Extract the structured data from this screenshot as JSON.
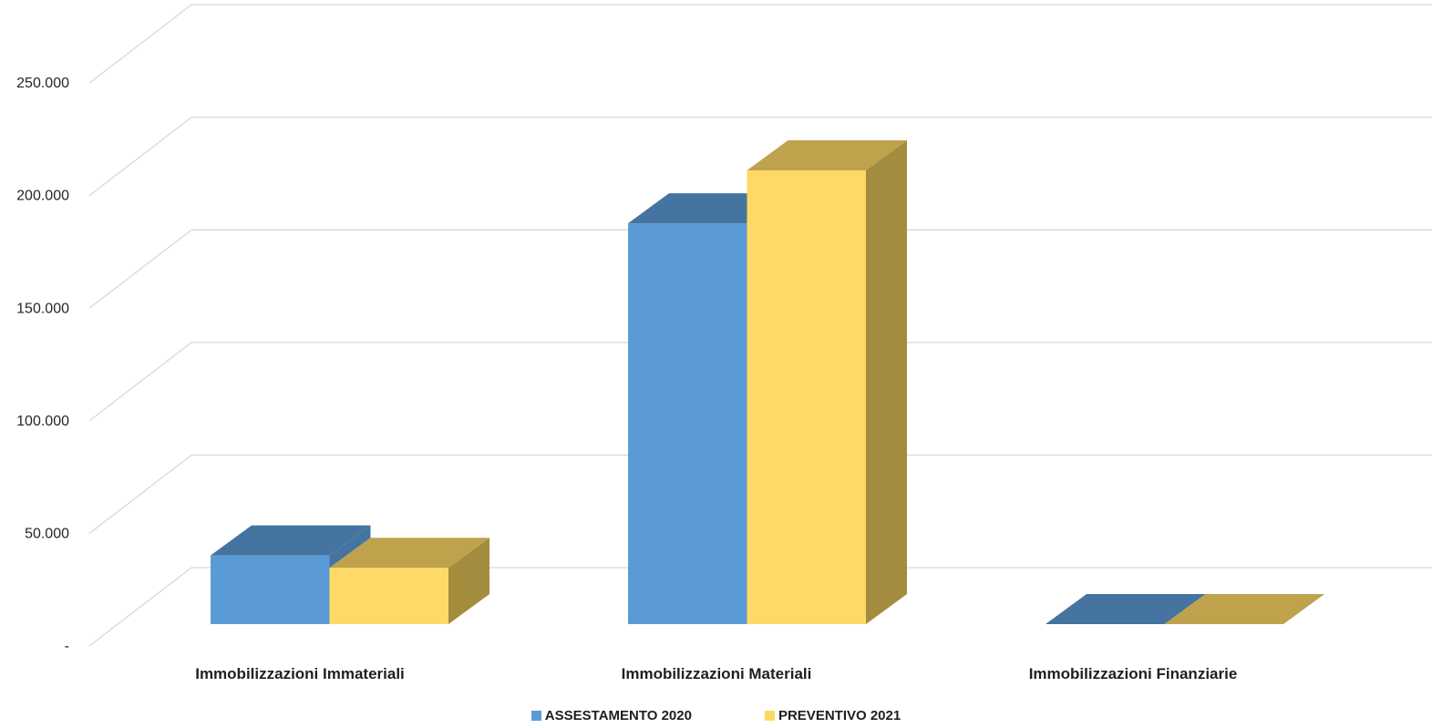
{
  "chart_data": {
    "type": "bar",
    "style": "3d-clustered-column",
    "categories": [
      "Immobilizzazioni Immateriali",
      "Immobilizzazioni Materiali",
      "Immobilizzazioni Finanziarie"
    ],
    "series": [
      {
        "name": "ASSESTAMENTO  2020",
        "values": [
          30500,
          178000,
          0
        ],
        "color": "#5b9bd5",
        "top_color": "#44749f"
      },
      {
        "name": "PREVENTIVO 2021",
        "values": [
          25000,
          201500,
          0
        ],
        "color": "#ffd966",
        "top_color": "#bfa24c",
        "side_color": "#a38c3e"
      }
    ],
    "ylim": [
      0,
      250000
    ],
    "yticks": [
      0,
      50000,
      100000,
      150000,
      200000,
      250000
    ],
    "ytick_labels": [
      "-",
      "50.000",
      "100.000",
      "150.000",
      "200.000",
      "250.000"
    ],
    "grid": true,
    "legend_position": "bottom",
    "title": "",
    "xlabel": "",
    "ylabel": ""
  }
}
